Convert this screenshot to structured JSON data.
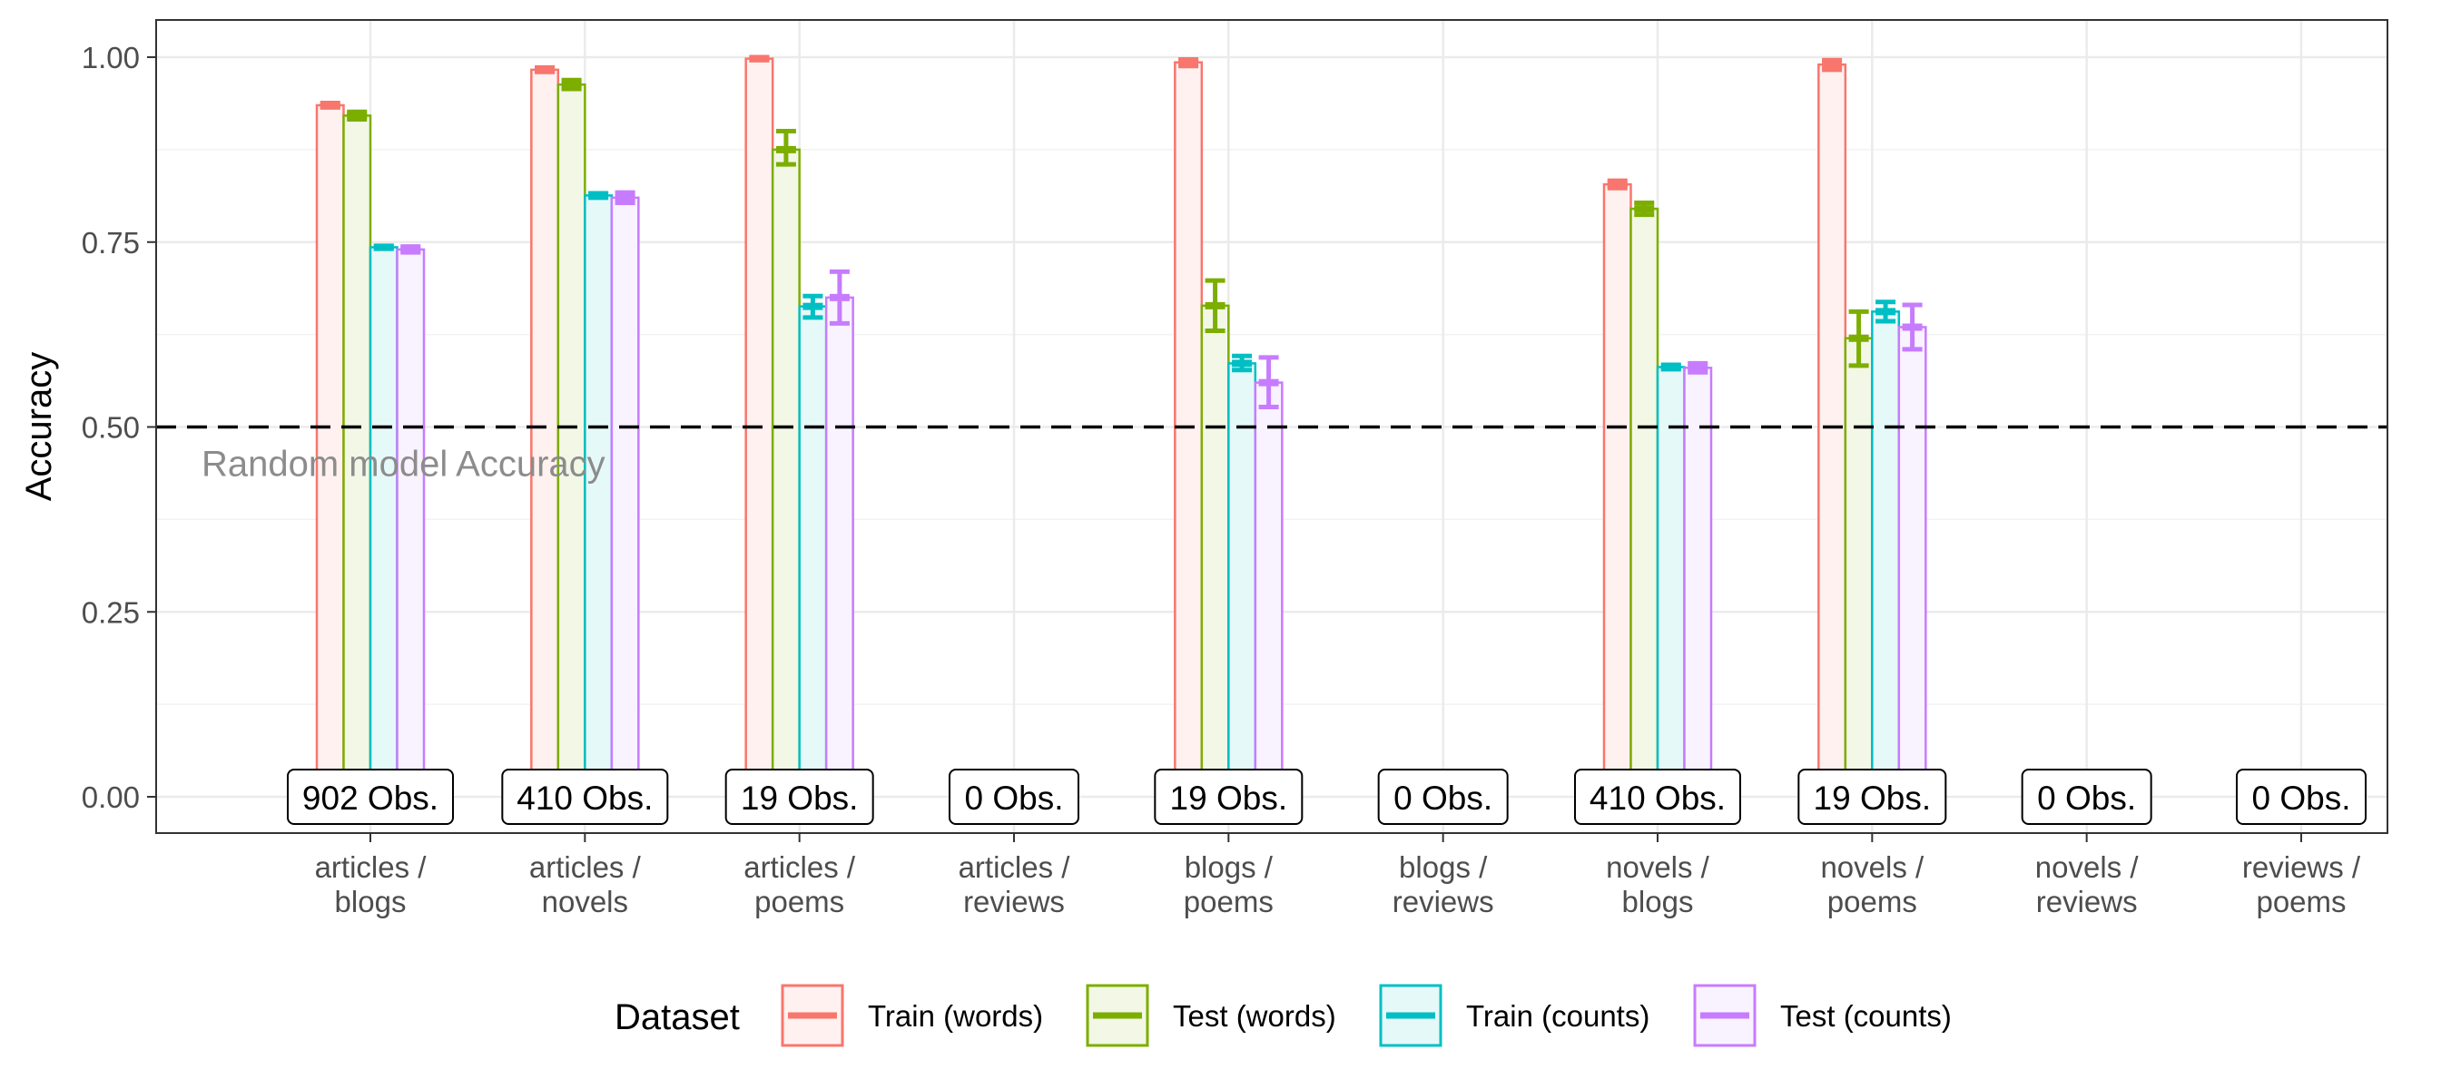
{
  "chart_data": {
    "type": "bar",
    "xlabel": "",
    "ylabel": "Accuracy",
    "ylim": [
      0,
      1
    ],
    "y_ticks": [
      "0.00",
      "0.25",
      "0.50",
      "0.75",
      "1.00"
    ],
    "grid": true,
    "legend": {
      "title": "Dataset",
      "position": "bottom"
    },
    "categories": [
      [
        "articles /",
        "blogs"
      ],
      [
        "articles /",
        "novels"
      ],
      [
        "articles /",
        "poems"
      ],
      [
        "articles /",
        "reviews"
      ],
      [
        "blogs /",
        "poems"
      ],
      [
        "blogs /",
        "reviews"
      ],
      [
        "novels /",
        "blogs"
      ],
      [
        "novels /",
        "poems"
      ],
      [
        "novels /",
        "reviews"
      ],
      [
        "reviews /",
        "poems"
      ]
    ],
    "obs_labels": [
      "902 Obs.",
      "410 Obs.",
      "19 Obs.",
      "0 Obs.",
      "19 Obs.",
      "0 Obs.",
      "410 Obs.",
      "19 Obs.",
      "0 Obs.",
      "0 Obs."
    ],
    "series": [
      {
        "name": "Train (words)",
        "color": "#F8766D",
        "fill": "#FEF1F0",
        "values": [
          0.935,
          0.983,
          0.998,
          null,
          0.993,
          null,
          0.828,
          0.99,
          null,
          null
        ],
        "ci_low": [
          0.932,
          0.98,
          0.996,
          null,
          0.988,
          null,
          0.823,
          0.983,
          null,
          null
        ],
        "ci_high": [
          0.938,
          0.986,
          1.0,
          null,
          0.997,
          null,
          0.833,
          0.996,
          null,
          null
        ]
      },
      {
        "name": "Test (words)",
        "color": "#7CAE00",
        "fill": "#F2F7E6",
        "values": [
          0.921,
          0.963,
          0.875,
          null,
          0.664,
          null,
          0.795,
          0.62,
          null,
          null
        ],
        "ci_low": [
          0.916,
          0.957,
          0.855,
          null,
          0.63,
          null,
          0.787,
          0.583,
          null,
          null
        ],
        "ci_high": [
          0.926,
          0.969,
          0.9,
          null,
          0.698,
          null,
          0.803,
          0.656,
          null,
          null
        ]
      },
      {
        "name": "Train (counts)",
        "color": "#00BFC4",
        "fill": "#E6F9F9",
        "values": [
          0.743,
          0.813,
          0.663,
          null,
          0.586,
          null,
          0.581,
          0.656,
          null,
          null
        ],
        "ci_low": [
          0.741,
          0.81,
          0.648,
          null,
          0.577,
          null,
          0.578,
          0.643,
          null,
          null
        ],
        "ci_high": [
          0.745,
          0.816,
          0.677,
          null,
          0.596,
          null,
          0.584,
          0.669,
          null,
          null
        ]
      },
      {
        "name": "Test (counts)",
        "color": "#C77CFF",
        "fill": "#F9F2FF",
        "values": [
          0.74,
          0.81,
          0.675,
          null,
          0.56,
          null,
          0.58,
          0.635,
          null,
          null
        ],
        "ci_low": [
          0.736,
          0.803,
          0.64,
          null,
          0.527,
          null,
          0.574,
          0.605,
          null,
          null
        ],
        "ci_high": [
          0.744,
          0.817,
          0.71,
          null,
          0.594,
          null,
          0.586,
          0.665,
          null,
          null
        ]
      }
    ],
    "reference_line": {
      "y": 0.5,
      "label": "Random model Accuracy"
    }
  }
}
